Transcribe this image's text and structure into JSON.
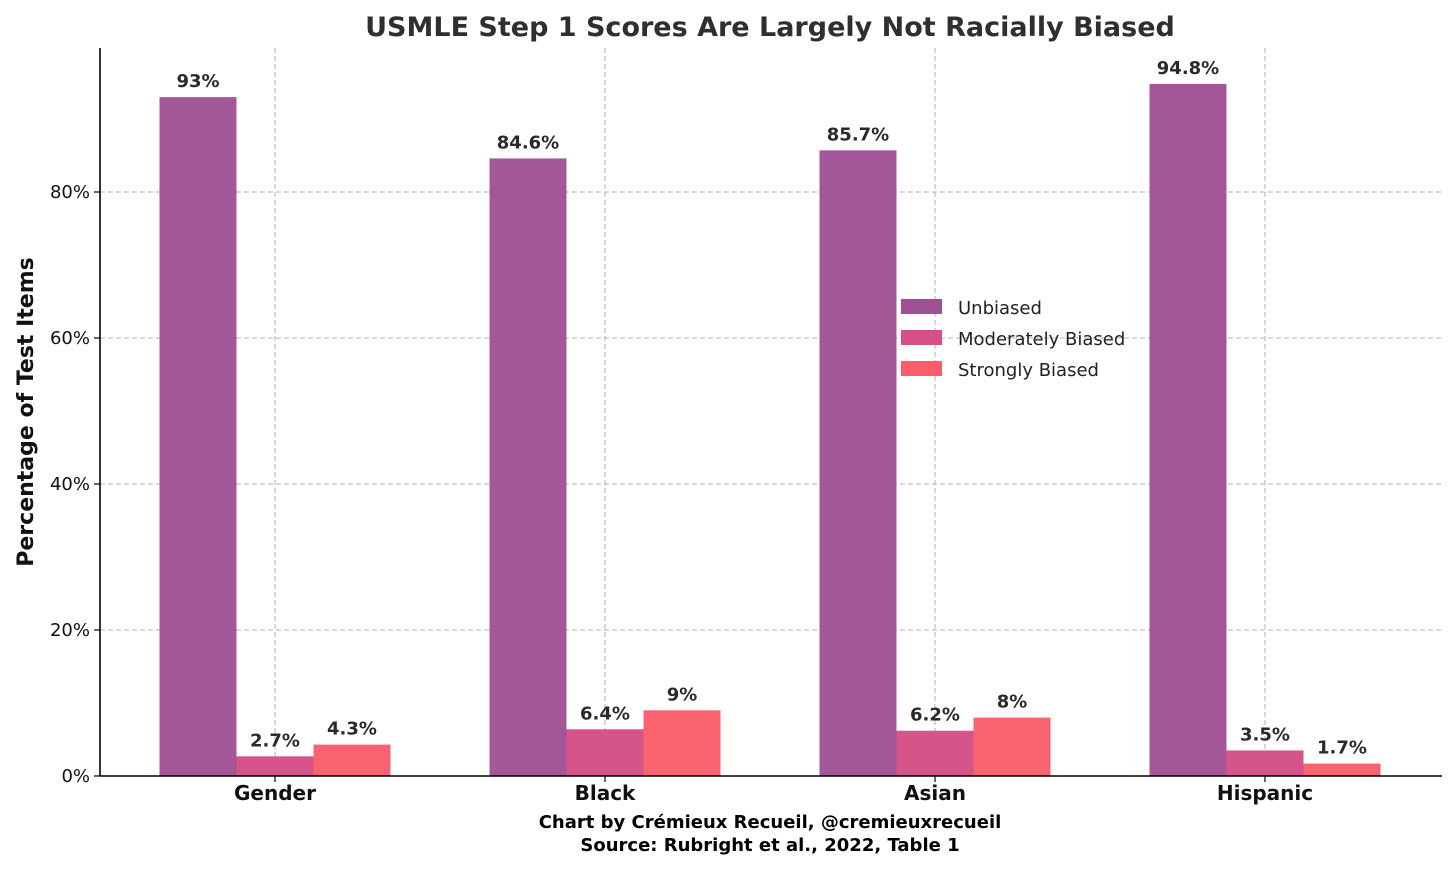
{
  "chart_data": {
    "type": "bar",
    "title": "USMLE Step 1 Scores Are Largely Not Racially Biased",
    "ylabel": "Percentage of Test Items",
    "xlabel": "",
    "categories": [
      "Gender",
      "Black",
      "Asian",
      "Hispanic"
    ],
    "ylim": [
      0,
      100
    ],
    "yticks": [
      0,
      20,
      40,
      60,
      80
    ],
    "ytick_labels": [
      "0%",
      "20%",
      "40%",
      "60%",
      "80%"
    ],
    "grid": true,
    "legend_position": "center-right",
    "series": [
      {
        "name": "Unbiased",
        "color": "#a05195",
        "values": [
          93,
          84.6,
          85.7,
          94.8
        ],
        "labels": [
          "93%",
          "84.6%",
          "85.7%",
          "94.8%"
        ]
      },
      {
        "name": "Moderately Biased",
        "color": "#d45087",
        "values": [
          2.7,
          6.4,
          6.2,
          3.5
        ],
        "labels": [
          "2.7%",
          "6.4%",
          "6.2%",
          "3.5%"
        ]
      },
      {
        "name": "Strongly Biased",
        "color": "#f95d6a",
        "values": [
          4.3,
          9,
          8,
          1.7
        ],
        "labels": [
          "4.3%",
          "9%",
          "8%",
          "1.7%"
        ]
      }
    ],
    "caption_line1": "Chart by Crémieux Recueil, @cremieuxrecueil",
    "caption_line2": "Source: Rubright et al., 2022, Table 1"
  }
}
